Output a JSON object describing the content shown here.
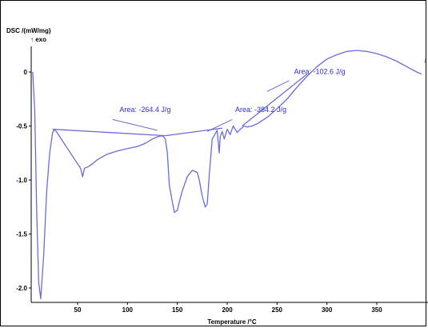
{
  "chart_data": {
    "type": "line",
    "title": "",
    "ylabel": "DSC /(mW/mg)",
    "ylabel_note": "↑ exo",
    "xlabel": "Temperature /°C",
    "xlim": [
      0,
      400
    ],
    "ylim": [
      -2.15,
      0.2
    ],
    "x_ticks": [
      "50",
      "100",
      "150",
      "200",
      "250",
      "300",
      "350"
    ],
    "x_tick_values": [
      50,
      100,
      150,
      200,
      250,
      300,
      350
    ],
    "y_ticks": [
      "0",
      "-0.5",
      "-1.0",
      "-1.5",
      "-2.0"
    ],
    "y_tick_values": [
      0,
      -0.5,
      -1.0,
      -1.5,
      -2.0
    ],
    "grid": false,
    "line_color": "#6b6bd8",
    "series": [
      {
        "x": [
          5,
          7,
          9,
          11,
          13,
          16,
          19,
          22,
          25,
          27,
          30,
          35,
          40,
          45,
          50,
          53,
          55,
          57,
          60,
          65,
          70,
          80,
          90,
          100,
          110,
          118,
          125,
          130,
          135,
          138,
          140,
          142,
          145,
          147,
          150,
          152,
          155,
          160,
          165,
          170,
          172,
          175,
          178,
          180,
          182,
          185,
          190,
          192,
          193,
          195,
          197,
          200,
          203,
          206,
          210,
          213,
          217,
          220,
          225,
          230,
          240,
          250,
          260,
          270,
          280,
          290,
          300,
          310,
          320,
          330,
          340,
          350,
          360,
          370,
          380,
          390,
          395
        ],
        "values": [
          0.0,
          -0.35,
          -1.3,
          -1.95,
          -2.1,
          -1.7,
          -1.1,
          -0.75,
          -0.56,
          -0.53,
          -0.57,
          -0.64,
          -0.71,
          -0.78,
          -0.85,
          -0.89,
          -0.97,
          -0.89,
          -0.88,
          -0.85,
          -0.81,
          -0.76,
          -0.73,
          -0.71,
          -0.69,
          -0.66,
          -0.62,
          -0.6,
          -0.59,
          -0.62,
          -0.75,
          -1.05,
          -1.2,
          -1.3,
          -1.28,
          -1.2,
          -1.1,
          -0.97,
          -0.91,
          -0.93,
          -1.0,
          -1.15,
          -1.25,
          -1.22,
          -0.95,
          -0.62,
          -0.54,
          -0.75,
          -0.6,
          -0.55,
          -0.62,
          -0.53,
          -0.58,
          -0.5,
          -0.56,
          -0.53,
          -0.5,
          -0.51,
          -0.5,
          -0.48,
          -0.42,
          -0.34,
          -0.25,
          -0.14,
          -0.04,
          0.05,
          0.12,
          0.16,
          0.19,
          0.2,
          0.19,
          0.17,
          0.14,
          0.1,
          0.05,
          0.0,
          -0.02
        ]
      }
    ],
    "baselines": [
      {
        "x": [
          25,
          138
        ],
        "values": [
          -0.53,
          -0.59
        ]
      },
      {
        "x": [
          138,
          195
        ],
        "values": [
          -0.59,
          -0.52
        ]
      },
      {
        "x": [
          215,
          280
        ],
        "values": [
          -0.5,
          -0.02
        ]
      }
    ],
    "annotations": [
      {
        "text": "Area: -264.4 J/g",
        "x": 92,
        "y": -0.37
      },
      {
        "text": "Area: -384.2 J/g",
        "x": 208,
        "y": -0.37
      },
      {
        "text": "Area: -102.6 J/g",
        "x": 267,
        "y": -0.02
      }
    ],
    "leader_lines": [
      {
        "x": [
          85,
          130
        ],
        "values": [
          -0.44,
          -0.54
        ]
      },
      {
        "x": [
          205,
          180
        ],
        "values": [
          -0.44,
          -0.55
        ]
      },
      {
        "x": [
          262,
          240
        ],
        "values": [
          -0.08,
          -0.18
        ]
      }
    ],
    "end_marker": "↓"
  }
}
